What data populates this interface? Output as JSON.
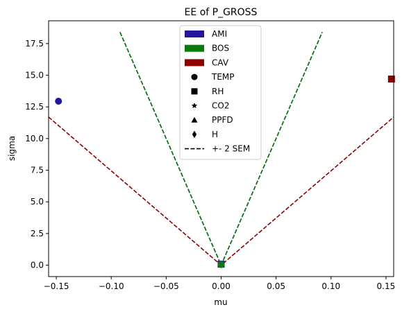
{
  "chart_data": {
    "type": "scatter",
    "title": "EE of P_GROSS",
    "xlabel": "mu",
    "ylabel": "sigma",
    "xlim": [
      -0.157,
      0.157
    ],
    "ylim": [
      -0.9,
      19.3
    ],
    "xticks": [
      -0.15,
      -0.1,
      -0.05,
      0.0,
      0.05,
      0.1,
      0.15
    ],
    "xtick_labels": [
      "−0.15",
      "−0.10",
      "−0.05",
      "0.00",
      "0.05",
      "0.10",
      "0.15"
    ],
    "yticks": [
      0.0,
      2.5,
      5.0,
      7.5,
      10.0,
      12.5,
      15.0,
      17.5
    ],
    "ytick_labels": [
      "0.0",
      "2.5",
      "5.0",
      "7.5",
      "10.0",
      "12.5",
      "15.0",
      "17.5"
    ],
    "grid": false,
    "legend_position": "top-center",
    "legend": {
      "sites": [
        {
          "name": "AMI",
          "color": "#22179a"
        },
        {
          "name": "BOS",
          "color": "#0a7a0a"
        },
        {
          "name": "CAV",
          "color": "#8b0000"
        }
      ],
      "markers": [
        {
          "name": "TEMP",
          "marker": "circle"
        },
        {
          "name": "RH",
          "marker": "square"
        },
        {
          "name": "CO2",
          "marker": "star"
        },
        {
          "name": "PPFD",
          "marker": "triangle"
        },
        {
          "name": "H",
          "marker": "diamond"
        }
      ],
      "line_label": "+- 2 SEM"
    },
    "points": [
      {
        "site": "AMI",
        "variable": "TEMP",
        "marker": "circle",
        "color": "#22179a",
        "x": -0.148,
        "y": 12.95
      },
      {
        "site": "CAV",
        "variable": "RH",
        "marker": "square",
        "color": "#8b0000",
        "x": 0.155,
        "y": 14.7
      },
      {
        "site": "CAV",
        "variable": "TEMP",
        "marker": "circle",
        "color": "#8b0000",
        "x": 0.0,
        "y": 0.05
      },
      {
        "site": "AMI",
        "variable": "RH",
        "marker": "square",
        "color": "#22179a",
        "x": 0.0,
        "y": 0.08
      },
      {
        "site": "BOS",
        "variable": "TEMP",
        "marker": "circle",
        "color": "#0a7a0a",
        "x": 0.0,
        "y": 0.05
      }
    ],
    "sem_lines": [
      {
        "site": "AMI",
        "color": "#22179a",
        "slope": 200.0,
        "x_extent": 0.092
      },
      {
        "site": "BOS",
        "color": "#0a7a0a",
        "slope": 200.0,
        "x_extent": 0.092
      },
      {
        "site": "CAV",
        "color": "#8b0000",
        "slope": 74.5,
        "x_extent": 0.157
      }
    ]
  }
}
